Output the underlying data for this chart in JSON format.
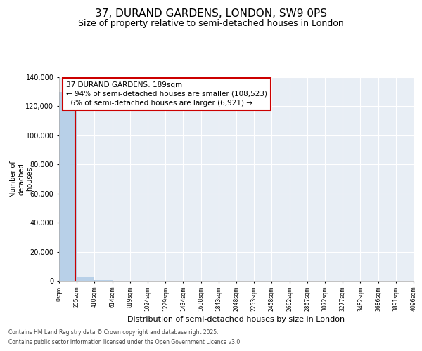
{
  "title": "37, DURAND GARDENS, LONDON, SW9 0PS",
  "subtitle": "Size of property relative to semi-detached houses in London",
  "xlabel": "Distribution of semi-detached houses by size in London",
  "ylabel": "Number of\ndetached\nhouses",
  "property_size": 189,
  "annotation_line1": "37 DURAND GARDENS: 189sqm",
  "annotation_line2": "← 94% of semi-detached houses are smaller (108,523)",
  "annotation_line3": "  6% of semi-detached houses are larger (6,921) →",
  "bin_edges": [
    0,
    205,
    410,
    614,
    819,
    1024,
    1229,
    1434,
    1638,
    1843,
    2048,
    2253,
    2458,
    2662,
    2867,
    3072,
    3277,
    3482,
    3686,
    3891,
    4096
  ],
  "bar_values": [
    130000,
    2200,
    400,
    150,
    80,
    50,
    30,
    20,
    15,
    12,
    10,
    8,
    7,
    6,
    5,
    4,
    3,
    3,
    2,
    2
  ],
  "bar_color": "#b8d0e8",
  "vline_color": "#cc0000",
  "vline_x": 189,
  "ylim": [
    0,
    140000
  ],
  "yticks": [
    0,
    20000,
    40000,
    60000,
    80000,
    100000,
    120000,
    140000
  ],
  "bg_color": "#e8eef5",
  "grid_color": "#ffffff",
  "footer_line1": "Contains HM Land Registry data © Crown copyright and database right 2025.",
  "footer_line2": "Contains public sector information licensed under the Open Government Licence v3.0.",
  "title_fontsize": 11,
  "subtitle_fontsize": 9,
  "annotation_box_color": "#cc0000",
  "annotation_fontsize": 7.5
}
